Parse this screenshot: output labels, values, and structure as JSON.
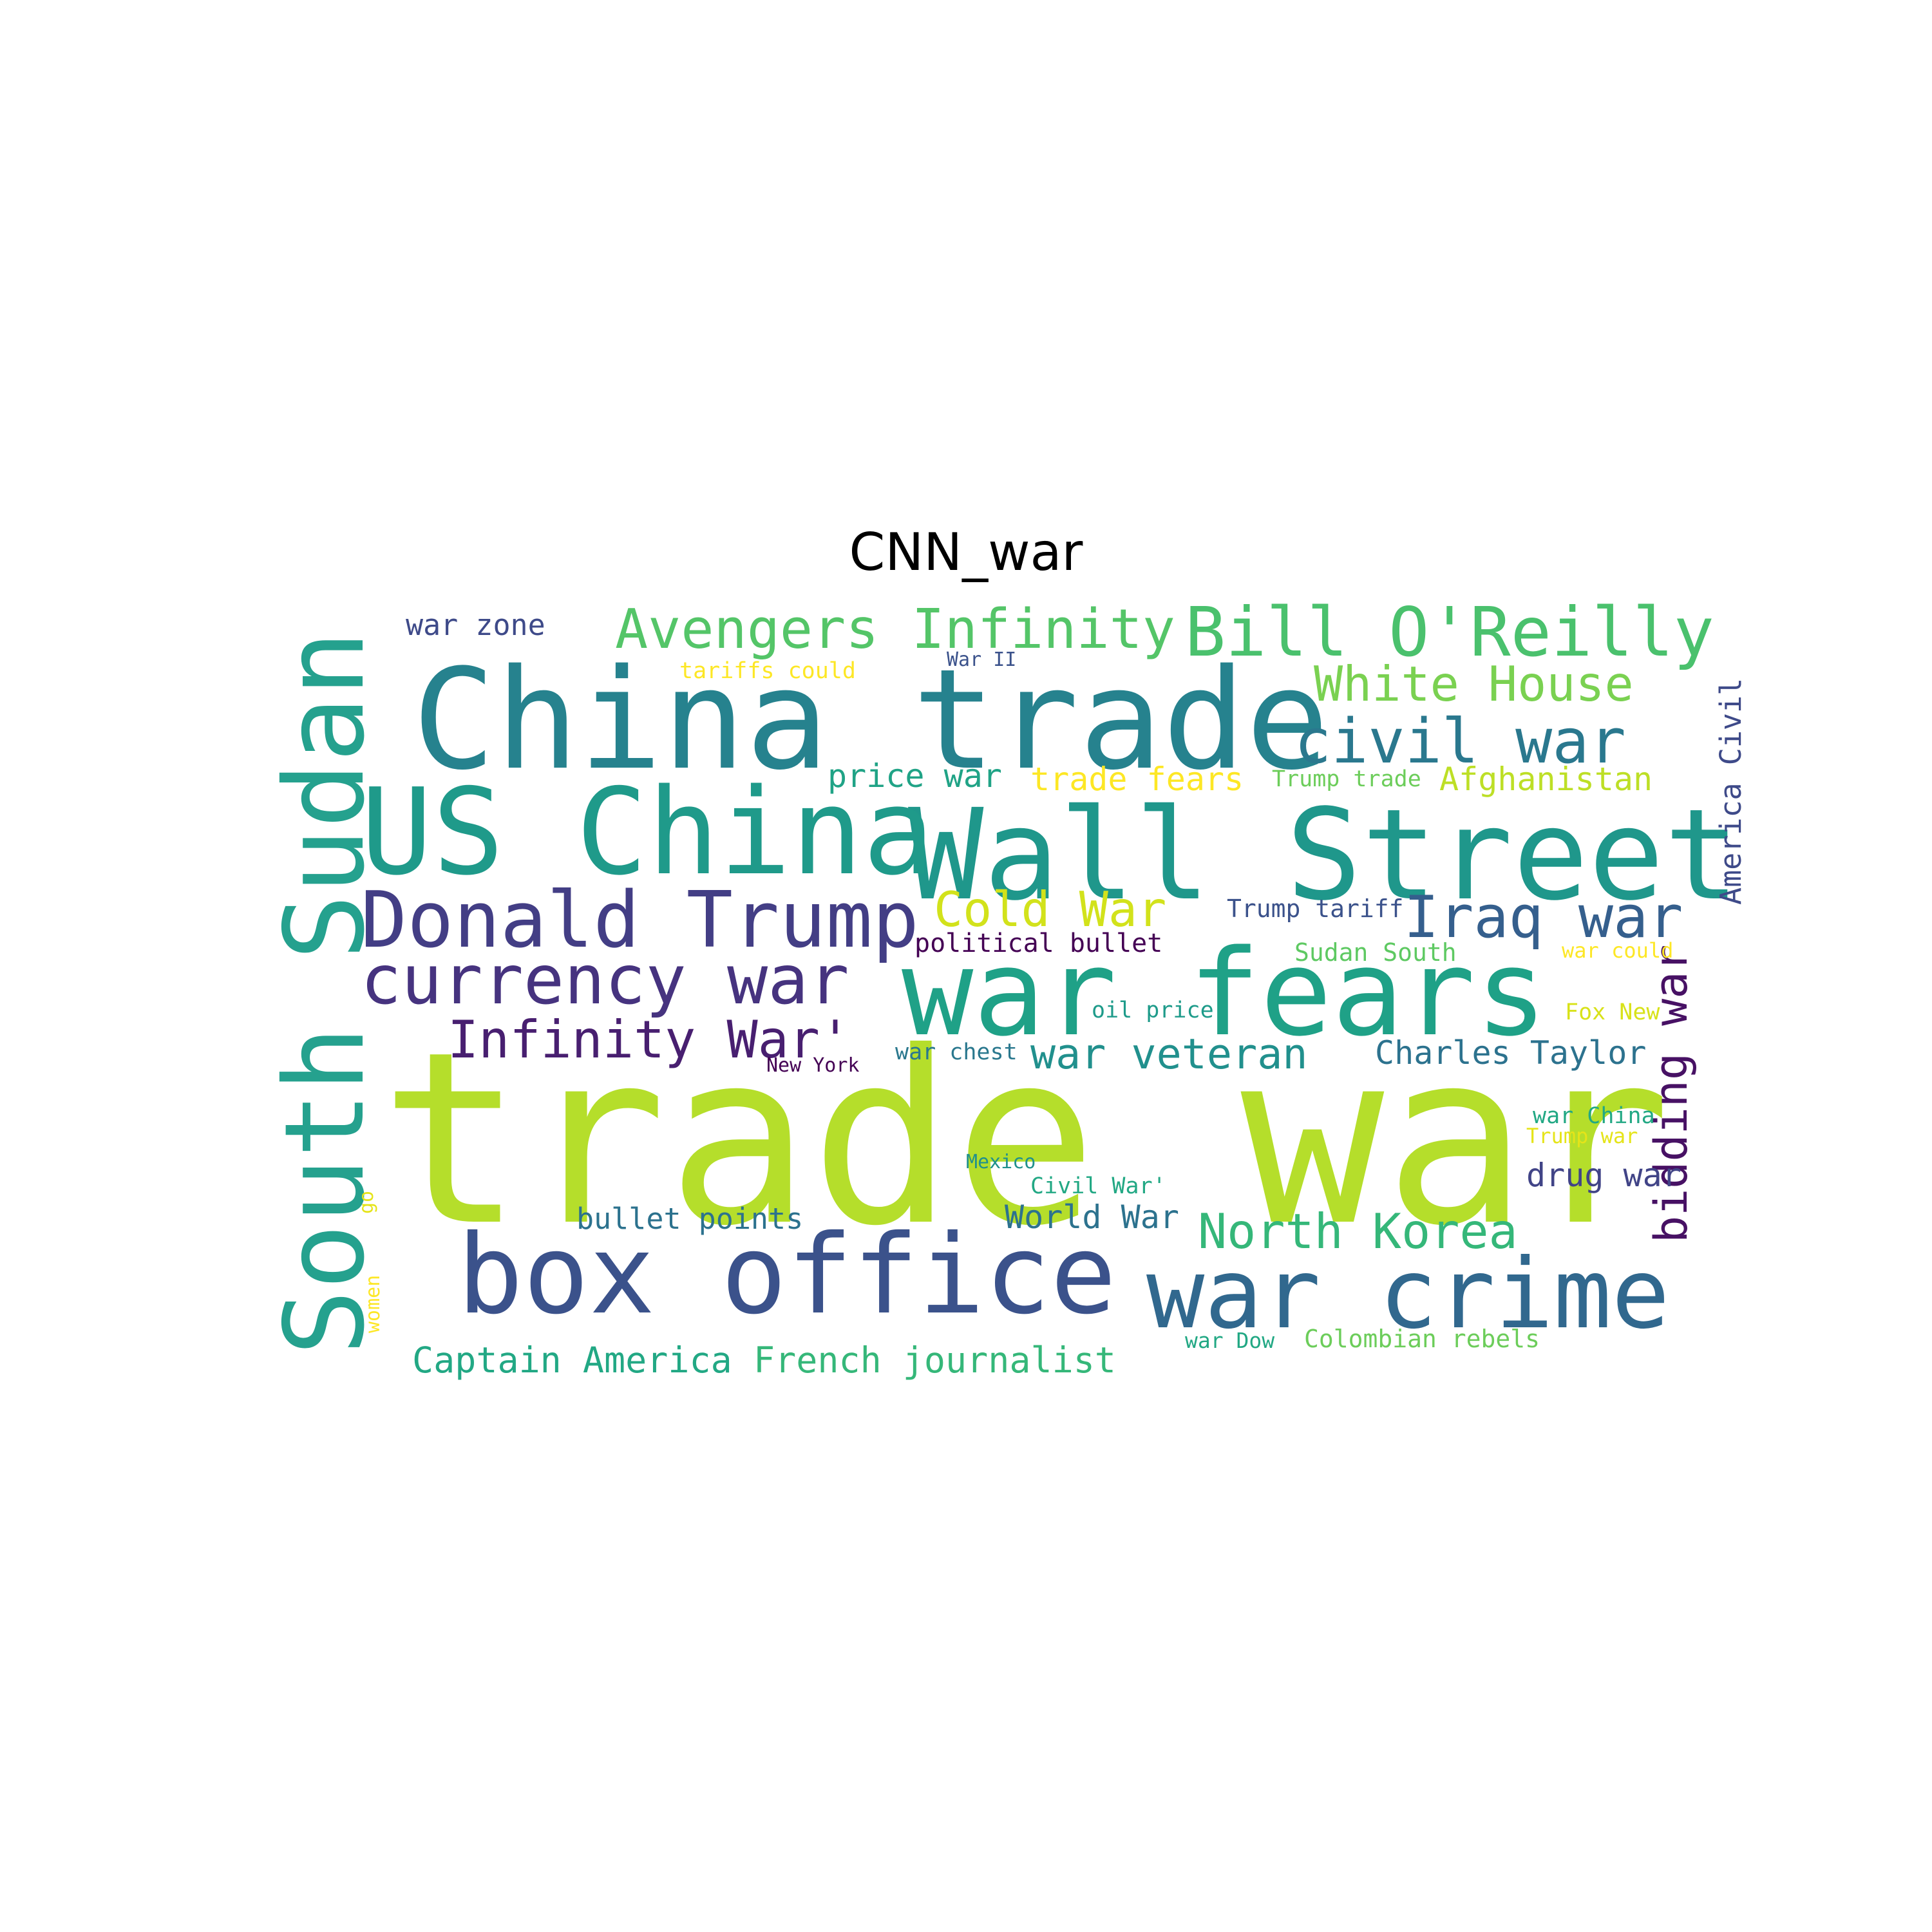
{
  "title": "CNN_war",
  "words": [
    {
      "text": "trade war",
      "color": "#b5de2b"
    },
    {
      "text": "South Sudan",
      "color": "#25a18e"
    },
    {
      "text": "China trade",
      "color": "#26828e"
    },
    {
      "text": "Wall Street",
      "color": "#1f978b"
    },
    {
      "text": "US China",
      "color": "#1f9a8a"
    },
    {
      "text": "war fears",
      "color": "#1fa187"
    },
    {
      "text": "box office",
      "color": "#3b528b"
    },
    {
      "text": "war crime",
      "color": "#31688e"
    },
    {
      "text": "Donald Trump",
      "color": "#433e85"
    },
    {
      "text": "currency war",
      "color": "#46337f"
    },
    {
      "text": "Bill O'Reilly",
      "color": "#4ac16d"
    },
    {
      "text": "Avengers Infinity",
      "color": "#54c568"
    },
    {
      "text": "civil war",
      "color": "#2a788e"
    },
    {
      "text": "Iraq war",
      "color": "#355f8d"
    },
    {
      "text": "Infinity War'",
      "color": "#481f70"
    },
    {
      "text": "bidding war",
      "color": "#471164"
    },
    {
      "text": "White House",
      "color": "#7ad151"
    },
    {
      "text": "Cold War",
      "color": "#d2e21b"
    },
    {
      "text": "North Korea",
      "color": "#35b779"
    },
    {
      "text": "war veteran",
      "color": "#21908d"
    },
    {
      "text": "Captain America",
      "color": "#22a884"
    },
    {
      "text": "French journalist",
      "color": "#35b779"
    },
    {
      "text": "Charles Taylor",
      "color": "#2c728e"
    },
    {
      "text": "Afghanistan",
      "color": "#bddf26"
    },
    {
      "text": "America Civil",
      "color": "#3e4a89"
    },
    {
      "text": "war zone",
      "color": "#3e4a89"
    },
    {
      "text": "price war",
      "color": "#20a386"
    },
    {
      "text": "trade fears",
      "color": "#fde725"
    },
    {
      "text": "bullet points",
      "color": "#2c728e"
    },
    {
      "text": "World War",
      "color": "#2c728e"
    },
    {
      "text": "drug war",
      "color": "#414487"
    },
    {
      "text": "political bullet",
      "color": "#440154"
    },
    {
      "text": "Trump tariff",
      "color": "#3b528b"
    },
    {
      "text": "Sudan South",
      "color": "#5ec962"
    },
    {
      "text": "oil price",
      "color": "#1e9b8a"
    },
    {
      "text": "war chest",
      "color": "#2a788e"
    },
    {
      "text": "war China",
      "color": "#22a884"
    },
    {
      "text": "Trump trade",
      "color": "#6ccd5a"
    },
    {
      "text": "Civil War'",
      "color": "#22a884"
    },
    {
      "text": "tariffs could",
      "color": "#fde725"
    },
    {
      "text": "War II",
      "color": "#3b528b"
    },
    {
      "text": "war could",
      "color": "#fde725"
    },
    {
      "text": "Fox New",
      "color": "#d8e219"
    },
    {
      "text": "Trump war",
      "color": "#e5e419"
    },
    {
      "text": "New York",
      "color": "#440154"
    },
    {
      "text": "Mexico",
      "color": "#21918c"
    },
    {
      "text": "war Dow",
      "color": "#22a884"
    },
    {
      "text": "Colombian rebels",
      "color": "#6ccd5a"
    },
    {
      "text": "go",
      "color": "#e5e419"
    },
    {
      "text": "women",
      "color": "#fde725"
    }
  ]
}
